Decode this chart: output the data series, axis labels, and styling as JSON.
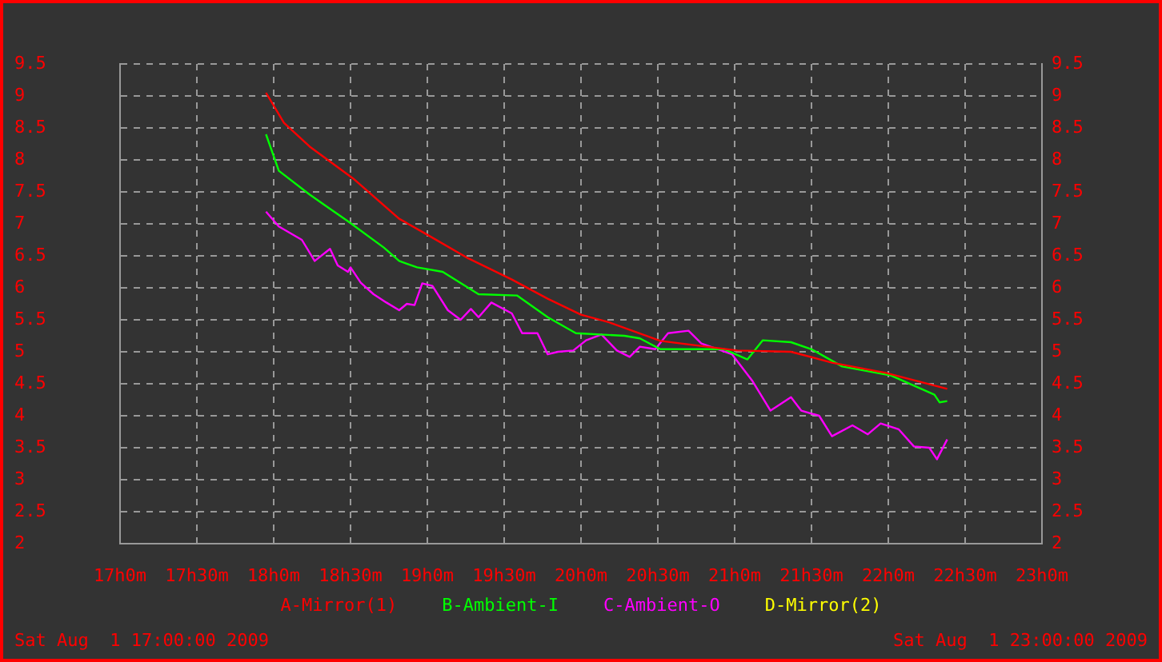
{
  "chart_data": {
    "type": "line",
    "xlim": [
      "2009-08-01T17:00",
      "2009-08-01T23:00"
    ],
    "xticks": [
      {
        "value": "2009-08-01T17:00",
        "label": "17h0m"
      },
      {
        "value": "2009-08-01T17:30",
        "label": "17h30m"
      },
      {
        "value": "2009-08-01T18:00",
        "label": "18h0m"
      },
      {
        "value": "2009-08-01T18:30",
        "label": "18h30m"
      },
      {
        "value": "2009-08-01T19:00",
        "label": "19h0m"
      },
      {
        "value": "2009-08-01T19:30",
        "label": "19h30m"
      },
      {
        "value": "2009-08-01T20:00",
        "label": "20h0m"
      },
      {
        "value": "2009-08-01T20:30",
        "label": "20h30m"
      },
      {
        "value": "2009-08-01T21:00",
        "label": "21h0m"
      },
      {
        "value": "2009-08-01T21:30",
        "label": "21h30m"
      },
      {
        "value": "2009-08-01T22:00",
        "label": "22h0m"
      },
      {
        "value": "2009-08-01T22:30",
        "label": "22h30m"
      },
      {
        "value": "2009-08-01T23:00",
        "label": "23h0m"
      }
    ],
    "ylim": [
      2,
      9.5
    ],
    "yticks": [
      2,
      2.5,
      3,
      3.5,
      4,
      4.5,
      5,
      5.5,
      6,
      6.5,
      7,
      7.5,
      8,
      8.5,
      9,
      9.5
    ],
    "y2lim": [
      2,
      9.5
    ],
    "y2ticks": [
      2,
      2.5,
      3,
      3.5,
      4,
      4.5,
      5,
      5.5,
      6,
      6.5,
      7,
      7.5,
      8,
      8.5,
      9,
      9.5
    ],
    "grid": true,
    "legend": "bottom",
    "marker": "none",
    "line_style": "solid",
    "annotations": [
      "Sat Aug  1 17:00:00 2009",
      "Sat Aug  1 23:00:00 2009"
    ],
    "series": [
      {
        "name": "A-Mirror(1)",
        "color": "#ff0000",
        "x": [
          "2009-08-01T17:57",
          "2009-08-01T18:04",
          "2009-08-01T18:14",
          "2009-08-01T18:31",
          "2009-08-01T18:49",
          "2009-08-01T19:00",
          "2009-08-01T19:16",
          "2009-08-01T19:33",
          "2009-08-01T19:47",
          "2009-08-01T20:00",
          "2009-08-01T20:11",
          "2009-08-01T20:31",
          "2009-08-01T21:01",
          "2009-08-01T21:22",
          "2009-08-01T21:38",
          "2009-08-01T21:59",
          "2009-08-01T22:23"
        ],
        "values": [
          9.05,
          8.58,
          8.21,
          7.71,
          7.08,
          6.83,
          6.46,
          6.13,
          5.83,
          5.58,
          5.46,
          5.17,
          5.02,
          5.0,
          4.83,
          4.67,
          4.42
        ]
      },
      {
        "name": "B-Ambient-I",
        "color": "#00ff00",
        "x": [
          "2009-08-01T17:57",
          "2009-08-01T18:02",
          "2009-08-01T18:14",
          "2009-08-01T18:20",
          "2009-08-01T18:29",
          "2009-08-01T18:43",
          "2009-08-01T18:49",
          "2009-08-01T18:56",
          "2009-08-01T19:06",
          "2009-08-01T19:20",
          "2009-08-01T19:35",
          "2009-08-01T19:47",
          "2009-08-01T19:58",
          "2009-08-01T20:17",
          "2009-08-01T20:23",
          "2009-08-01T20:31",
          "2009-08-01T20:56",
          "2009-08-01T21:05",
          "2009-08-01T21:11",
          "2009-08-01T21:22",
          "2009-08-01T21:30",
          "2009-08-01T21:42",
          "2009-08-01T22:01",
          "2009-08-01T22:18",
          "2009-08-01T22:20",
          "2009-08-01T22:23"
        ],
        "values": [
          8.4,
          7.83,
          7.46,
          7.29,
          7.04,
          6.63,
          6.42,
          6.32,
          6.25,
          5.9,
          5.88,
          5.54,
          5.29,
          5.25,
          5.21,
          5.04,
          5.04,
          4.88,
          5.18,
          5.15,
          5.04,
          4.77,
          4.63,
          4.33,
          4.21,
          4.23
        ]
      },
      {
        "name": "C-Ambient-O",
        "color": "#ff00ff",
        "x": [
          "2009-08-01T17:57",
          "2009-08-01T18:02",
          "2009-08-01T18:11",
          "2009-08-01T18:16",
          "2009-08-01T18:22",
          "2009-08-01T18:25",
          "2009-08-01T18:29",
          "2009-08-01T18:30",
          "2009-08-01T18:34",
          "2009-08-01T18:39",
          "2009-08-01T18:44",
          "2009-08-01T18:49",
          "2009-08-01T18:52",
          "2009-08-01T18:55",
          "2009-08-01T18:58",
          "2009-08-01T19:02",
          "2009-08-01T19:08",
          "2009-08-01T19:13",
          "2009-08-01T19:17",
          "2009-08-01T19:20",
          "2009-08-01T19:25",
          "2009-08-01T19:33",
          "2009-08-01T19:37",
          "2009-08-01T19:43",
          "2009-08-01T19:47",
          "2009-08-01T19:51",
          "2009-08-01T19:57",
          "2009-08-01T20:02",
          "2009-08-01T20:08",
          "2009-08-01T20:14",
          "2009-08-01T20:19",
          "2009-08-01T20:23",
          "2009-08-01T20:29",
          "2009-08-01T20:34",
          "2009-08-01T20:42",
          "2009-08-01T20:47",
          "2009-08-01T20:59",
          "2009-08-01T21:07",
          "2009-08-01T21:14",
          "2009-08-01T21:22",
          "2009-08-01T21:26",
          "2009-08-01T21:33",
          "2009-08-01T21:38",
          "2009-08-01T21:46",
          "2009-08-01T21:52",
          "2009-08-01T21:57",
          "2009-08-01T22:04",
          "2009-08-01T22:10",
          "2009-08-01T22:16",
          "2009-08-01T22:19",
          "2009-08-01T22:23"
        ],
        "values": [
          7.19,
          6.96,
          6.75,
          6.42,
          6.61,
          6.35,
          6.25,
          6.32,
          6.08,
          5.9,
          5.77,
          5.65,
          5.75,
          5.73,
          6.07,
          6.03,
          5.65,
          5.5,
          5.67,
          5.54,
          5.77,
          5.6,
          5.29,
          5.29,
          4.96,
          5.0,
          5.02,
          5.18,
          5.27,
          5.02,
          4.92,
          5.08,
          5.04,
          5.29,
          5.33,
          5.13,
          4.96,
          4.54,
          4.08,
          4.29,
          4.08,
          4.0,
          3.68,
          3.85,
          3.71,
          3.88,
          3.79,
          3.52,
          3.5,
          3.32,
          3.63
        ]
      },
      {
        "name": "D-Mirror(2)",
        "color": "#ffff00"
      }
    ]
  }
}
